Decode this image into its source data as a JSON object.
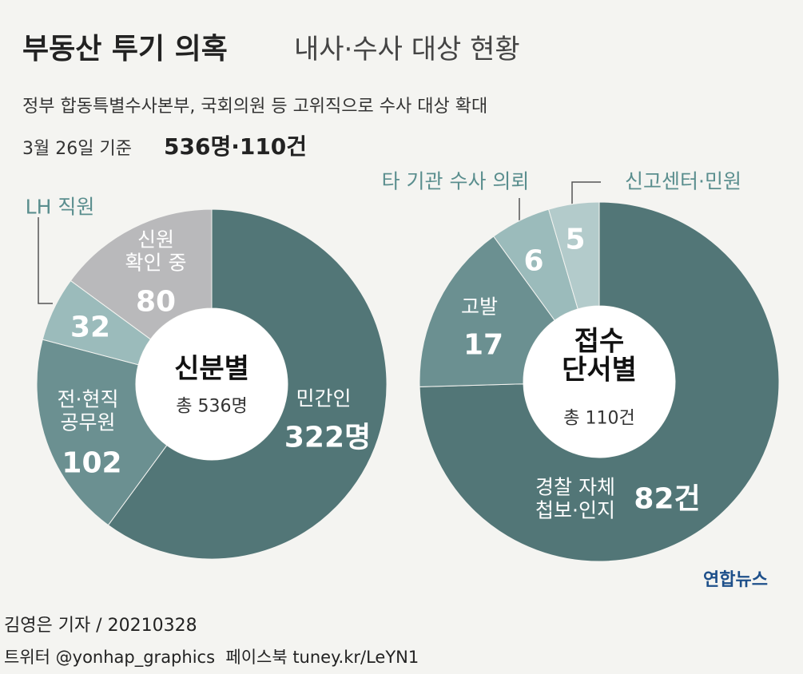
{
  "header": {
    "title": "부동산 투기 의혹",
    "title_suffix": "내사·수사 대상 현황",
    "subtitle": "정부 합동특별수사본부, 국회의원 등 고위직으로 수사 대상 확대",
    "date_note": "3월 26일 기준",
    "totals": "536명·110건"
  },
  "chart_data": [
    {
      "type": "donut",
      "title": "신분별",
      "subtitle": "총 536명",
      "categories": [
        "민간인",
        "전·현직\n공무원",
        "LH 직원",
        "신원\n확인 중"
      ],
      "values": [
        322,
        102,
        32,
        80
      ],
      "value_labels": [
        "322명",
        "102",
        "32",
        "80"
      ],
      "colors": [
        "#527677",
        "#6b9091",
        "#9bbbbb",
        "#b9b9bb"
      ]
    },
    {
      "type": "donut",
      "title": "접수\n단서별",
      "subtitle": "총 110건",
      "categories": [
        "경찰 자체\n첩보·인지",
        "고발",
        "타 기관 수사 의뢰",
        "신고센터·민원"
      ],
      "values": [
        82,
        17,
        6,
        5
      ],
      "value_labels": [
        "82건",
        "17",
        "6",
        "5"
      ],
      "colors": [
        "#527677",
        "#6b9091",
        "#9bbbbb",
        "#b3cbcb"
      ]
    }
  ],
  "footer": {
    "byline": "김영은 기자 / 20210328",
    "social": "트위터 @yonhap_graphics  페이스북 tuney.kr/LeYN1",
    "logo": "연합뉴스"
  }
}
